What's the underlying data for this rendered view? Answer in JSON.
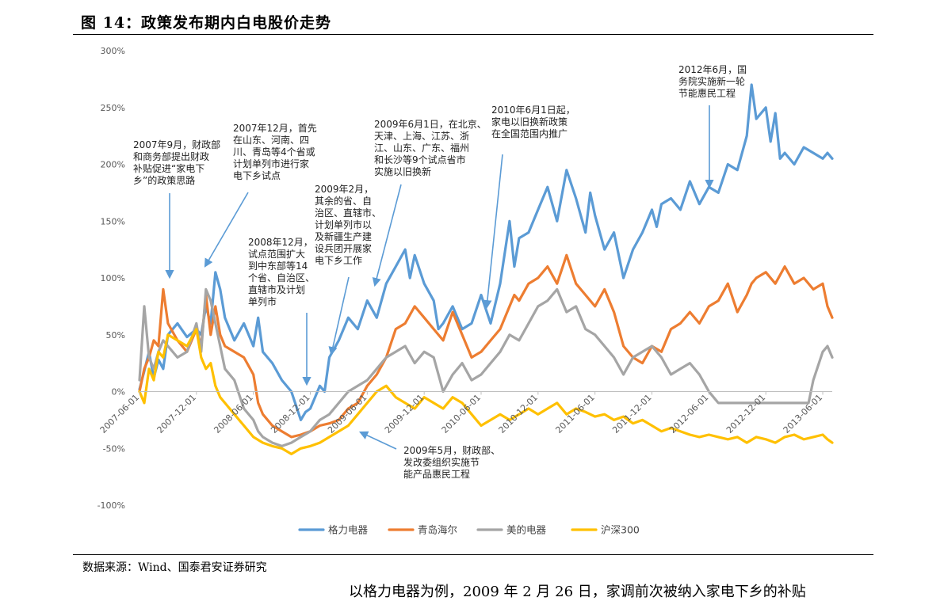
{
  "figure": {
    "title": "图 14：政策发布期内白电股价走势",
    "source": "数据来源：Wind、国泰君安证券研究",
    "footer_text": "以格力电器为例，2009 年 2 月 26 日，家调前次被纳入家电下乡的补贴"
  },
  "chart_data": {
    "type": "line",
    "title": "政策发布期内白电股价走势",
    "xlabel": "",
    "ylabel": "",
    "ylim": [
      -100,
      300
    ],
    "yticks": [
      300,
      250,
      200,
      150,
      100,
      50,
      0,
      -50,
      -100
    ],
    "ytick_labels": [
      "300%",
      "250%",
      "200%",
      "150%",
      "100%",
      "50%",
      "0%",
      "-50%",
      "-100%"
    ],
    "xlim": [
      0,
      73
    ],
    "xticks": [
      0,
      6,
      12,
      18,
      24,
      30,
      36,
      42,
      48,
      54,
      60,
      66,
      72
    ],
    "xtick_labels": [
      "2007-06-01",
      "2007-12-01",
      "2008-06-01",
      "2008-12-01",
      "2009-06-01",
      "2009-12-01",
      "2010-06-01",
      "2010-12-01",
      "2011-06-01",
      "2011-12-01",
      "2012-06-01",
      "2012-12-01",
      "2013-06-01"
    ],
    "legend_position": "bottom",
    "series": [
      {
        "name": "格力电器",
        "color": "#5B9BD5",
        "x": [
          0,
          0.5,
          1,
          1.5,
          2,
          2.5,
          3,
          4,
          5,
          6,
          6.5,
          7,
          7.5,
          8,
          8.5,
          9,
          10,
          11,
          12,
          12.5,
          13,
          14,
          15,
          16,
          17,
          17.5,
          18,
          18.5,
          19,
          19.5,
          20,
          21,
          22,
          23,
          24,
          25,
          26,
          27,
          28,
          28.5,
          29,
          30,
          31,
          31.5,
          32,
          33,
          34,
          35,
          36,
          37,
          38,
          39,
          39.5,
          40,
          41,
          42,
          43,
          44,
          45,
          46,
          47,
          47.5,
          48,
          49,
          50,
          51,
          52,
          53,
          54,
          54.5,
          55,
          56,
          57,
          58,
          59,
          60,
          61,
          62,
          63,
          64,
          64.5,
          65,
          66,
          66.5,
          67,
          67.5,
          68,
          69,
          70,
          71,
          72,
          72.5,
          73
        ],
        "y": [
          2,
          18,
          35,
          12,
          28,
          20,
          50,
          60,
          48,
          55,
          50,
          75,
          60,
          105,
          90,
          65,
          45,
          60,
          40,
          65,
          35,
          25,
          10,
          0,
          -25,
          -18,
          -15,
          -5,
          5,
          0,
          30,
          45,
          65,
          55,
          80,
          65,
          95,
          110,
          125,
          100,
          120,
          95,
          80,
          55,
          60,
          75,
          55,
          60,
          85,
          60,
          95,
          150,
          110,
          135,
          140,
          160,
          180,
          150,
          195,
          170,
          140,
          175,
          155,
          125,
          140,
          100,
          125,
          140,
          160,
          145,
          165,
          170,
          160,
          185,
          165,
          180,
          175,
          200,
          195,
          225,
          270,
          240,
          250,
          220,
          245,
          205,
          210,
          200,
          215,
          210,
          205,
          210,
          205
        ]
      },
      {
        "name": "青岛海尔",
        "color": "#ED7D31",
        "x": [
          0,
          0.5,
          1,
          1.5,
          2,
          2.5,
          3,
          4,
          5,
          6,
          6.5,
          7,
          7.5,
          8,
          8.5,
          9,
          10,
          11,
          12,
          12.5,
          13,
          14,
          15,
          16,
          17,
          18,
          19,
          20,
          21,
          22,
          23,
          24,
          25,
          26,
          27,
          28,
          29,
          30,
          31,
          32,
          33,
          34,
          35,
          36,
          37,
          38,
          39,
          39.5,
          40,
          41,
          42,
          43,
          44,
          45,
          46,
          47,
          48,
          49,
          50,
          51,
          52,
          53,
          54,
          55,
          56,
          57,
          58,
          59,
          60,
          61,
          62,
          63,
          64,
          64.5,
          65,
          66,
          67,
          68,
          69,
          70,
          71,
          72,
          72.5,
          73
        ],
        "y": [
          0,
          20,
          30,
          45,
          40,
          90,
          60,
          45,
          35,
          55,
          40,
          85,
          50,
          75,
          50,
          40,
          35,
          30,
          15,
          -10,
          -20,
          -30,
          -35,
          -40,
          -38,
          -35,
          -30,
          -28,
          -25,
          -15,
          -10,
          5,
          15,
          30,
          55,
          60,
          75,
          65,
          55,
          45,
          70,
          50,
          30,
          35,
          45,
          55,
          75,
          85,
          80,
          95,
          100,
          110,
          95,
          120,
          95,
          85,
          75,
          90,
          70,
          40,
          30,
          25,
          40,
          35,
          55,
          60,
          70,
          60,
          75,
          80,
          95,
          70,
          85,
          95,
          100,
          105,
          95,
          110,
          95,
          100,
          90,
          95,
          75,
          65
        ]
      },
      {
        "name": "美的电器",
        "color": "#A5A5A5",
        "x": [
          0,
          0.5,
          1,
          1.5,
          2,
          2.5,
          3,
          4,
          5,
          6,
          6.5,
          7,
          7.5,
          8,
          8.5,
          9,
          10,
          11,
          12,
          12.5,
          13,
          14,
          15,
          16,
          17,
          18,
          19,
          20,
          21,
          22,
          23,
          24,
          25,
          26,
          27,
          28,
          29,
          30,
          31,
          32,
          33,
          34,
          35,
          36,
          37,
          38,
          39,
          40,
          41,
          42,
          43,
          44,
          45,
          46,
          47,
          48,
          49,
          50,
          51,
          52,
          53,
          54,
          55,
          56,
          57,
          58,
          59,
          60,
          60.5,
          61,
          62,
          63,
          64,
          65,
          66,
          67,
          68,
          69,
          69.5,
          70,
          70.5,
          71,
          72,
          72.5,
          73
        ],
        "y": [
          10,
          75,
          30,
          20,
          35,
          45,
          40,
          30,
          35,
          60,
          35,
          90,
          80,
          60,
          40,
          20,
          10,
          -15,
          -25,
          -35,
          -40,
          -45,
          -48,
          -45,
          -40,
          -35,
          -25,
          -20,
          -10,
          0,
          5,
          10,
          20,
          30,
          35,
          40,
          25,
          35,
          30,
          0,
          15,
          25,
          10,
          15,
          25,
          35,
          50,
          45,
          60,
          75,
          80,
          90,
          70,
          75,
          55,
          50,
          40,
          30,
          15,
          30,
          35,
          40,
          30,
          15,
          20,
          25,
          15,
          0,
          -5,
          -10,
          -10,
          -10,
          -10,
          -10,
          -10,
          -10,
          -10,
          -10,
          -10,
          -10,
          -10,
          10,
          35,
          40,
          30
        ]
      },
      {
        "name": "沪深300",
        "color": "#FFC000",
        "x": [
          0,
          0.5,
          1,
          1.5,
          2,
          2.5,
          3,
          4,
          5,
          6,
          6.5,
          7,
          7.5,
          8,
          8.5,
          9,
          10,
          11,
          12,
          13,
          14,
          15,
          16,
          17,
          18,
          19,
          20,
          21,
          22,
          23,
          24,
          25,
          26,
          27,
          28,
          29,
          30,
          31,
          32,
          33,
          34,
          35,
          36,
          37,
          38,
          39,
          40,
          41,
          42,
          43,
          44,
          45,
          46,
          47,
          48,
          49,
          50,
          51,
          52,
          53,
          54,
          55,
          56,
          57,
          58,
          59,
          60,
          61,
          62,
          63,
          64,
          65,
          66,
          67,
          68,
          69,
          70,
          71,
          72,
          72.5,
          73
        ],
        "y": [
          0,
          -10,
          20,
          10,
          35,
          30,
          50,
          45,
          40,
          55,
          30,
          20,
          25,
          5,
          -5,
          -10,
          -20,
          -30,
          -40,
          -45,
          -48,
          -50,
          -55,
          -50,
          -48,
          -45,
          -40,
          -35,
          -30,
          -20,
          -10,
          0,
          5,
          -5,
          -10,
          -15,
          -5,
          -10,
          -15,
          -5,
          -10,
          -20,
          -30,
          -25,
          -20,
          -25,
          -20,
          -15,
          -20,
          -15,
          -10,
          -20,
          -15,
          -18,
          -22,
          -20,
          -25,
          -22,
          -28,
          -25,
          -30,
          -35,
          -32,
          -35,
          -38,
          -40,
          -38,
          -40,
          -42,
          -40,
          -45,
          -40,
          -42,
          -45,
          -40,
          -38,
          -42,
          -40,
          -38,
          -42,
          -45
        ]
      }
    ],
    "annotations": [
      {
        "lines": [
          "2007年9月，财政部",
          "和商务部提出财政",
          "补贴促进“家电下",
          "乡”的政策思路"
        ]
      },
      {
        "lines": [
          "2007年12月，首先",
          "在山东、河南、四",
          "川、青岛等4个省或",
          "计划单列市进行家",
          "电下乡试点"
        ]
      },
      {
        "lines": [
          "2008年12月，",
          "试点范围扩大",
          "到中东部等14",
          "个省、自治区、",
          "直辖市及计划",
          "单列市"
        ]
      },
      {
        "lines": [
          "2009年2月，",
          "其余的省、自",
          "治区、直辖市、",
          "计划单列市以",
          "及新疆生产建",
          "设兵团开展家",
          "电下乡工作"
        ]
      },
      {
        "lines": [
          "2009年6月1日，在北京、",
          "天津、上海、江苏、浙",
          "江、山东、广东、福州",
          "和长沙等9个试点省市",
          "实施以旧换新"
        ]
      },
      {
        "lines": [
          "2010年6月1日起，",
          "家电以旧换新政策",
          "在全国范围内推广"
        ]
      },
      {
        "lines": [
          "2012年6月，国",
          "务院实施新一轮",
          "节能惠民工程"
        ]
      },
      {
        "lines": [
          "2009年5月，财政部、",
          "发改委组织实施节",
          "能产品惠民工程"
        ]
      }
    ]
  }
}
